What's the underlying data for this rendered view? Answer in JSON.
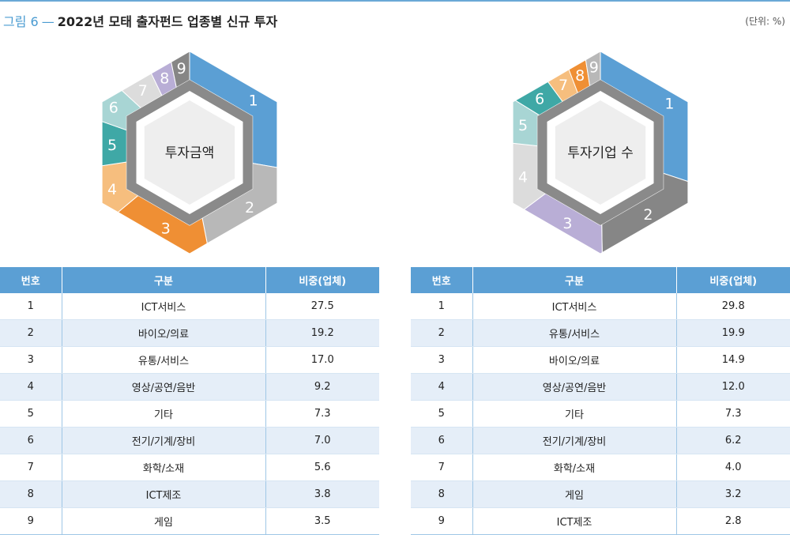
{
  "header": {
    "figure_label": "그림 6",
    "dash": "—",
    "title": "2022년 모태 출자펀드 업종별 신규 투자",
    "unit": "(단위: %)"
  },
  "table_headers": {
    "no": "번호",
    "category": "구분",
    "share": "비중(업체)"
  },
  "chart_data": [
    {
      "type": "pie",
      "center_label": "투자금액",
      "slices": [
        {
          "no": "1",
          "label": "ICT서비스",
          "value": 27.5,
          "value_text": "27.5",
          "color": "#5b9fd4"
        },
        {
          "no": "2",
          "label": "바이오/의료",
          "value": 19.2,
          "value_text": "19.2",
          "color": "#b8b8b8"
        },
        {
          "no": "3",
          "label": "유통/서비스",
          "value": 17.0,
          "value_text": "17.0",
          "color": "#ef8f34"
        },
        {
          "no": "4",
          "label": "영상/공연/음반",
          "value": 9.2,
          "value_text": "9.2",
          "color": "#f6be7e"
        },
        {
          "no": "5",
          "label": "기타",
          "value": 7.3,
          "value_text": "7.3",
          "color": "#3fa8a6"
        },
        {
          "no": "6",
          "label": "전기/기계/장비",
          "value": 7.0,
          "value_text": "7.0",
          "color": "#a8d5d4"
        },
        {
          "no": "7",
          "label": "화학/소재",
          "value": 5.6,
          "value_text": "5.6",
          "color": "#dcdcdc"
        },
        {
          "no": "8",
          "label": "ICT제조",
          "value": 3.8,
          "value_text": "3.8",
          "color": "#b9aed6"
        },
        {
          "no": "9",
          "label": "게임",
          "value": 3.5,
          "value_text": "3.5",
          "color": "#868686"
        }
      ]
    },
    {
      "type": "pie",
      "center_label": "투자기업 수",
      "slices": [
        {
          "no": "1",
          "label": "ICT서비스",
          "value": 29.8,
          "value_text": "29.8",
          "color": "#5b9fd4"
        },
        {
          "no": "2",
          "label": "유통/서비스",
          "value": 19.9,
          "value_text": "19.9",
          "color": "#868686"
        },
        {
          "no": "3",
          "label": "바이오/의료",
          "value": 14.9,
          "value_text": "14.9",
          "color": "#b9aed6"
        },
        {
          "no": "4",
          "label": "영상/공연/음반",
          "value": 12.0,
          "value_text": "12.0",
          "color": "#dcdcdc"
        },
        {
          "no": "5",
          "label": "기타",
          "value": 7.3,
          "value_text": "7.3",
          "color": "#a8d5d4"
        },
        {
          "no": "6",
          "label": "전기/기계/장비",
          "value": 6.2,
          "value_text": "6.2",
          "color": "#3fa8a6"
        },
        {
          "no": "7",
          "label": "화학/소재",
          "value": 4.0,
          "value_text": "4.0",
          "color": "#f6be7e"
        },
        {
          "no": "8",
          "label": "게임",
          "value": 3.2,
          "value_text": "3.2",
          "color": "#ef8f34"
        },
        {
          "no": "9",
          "label": "ICT제조",
          "value": 2.8,
          "value_text": "2.8",
          "color": "#b8b8b8"
        }
      ]
    }
  ]
}
